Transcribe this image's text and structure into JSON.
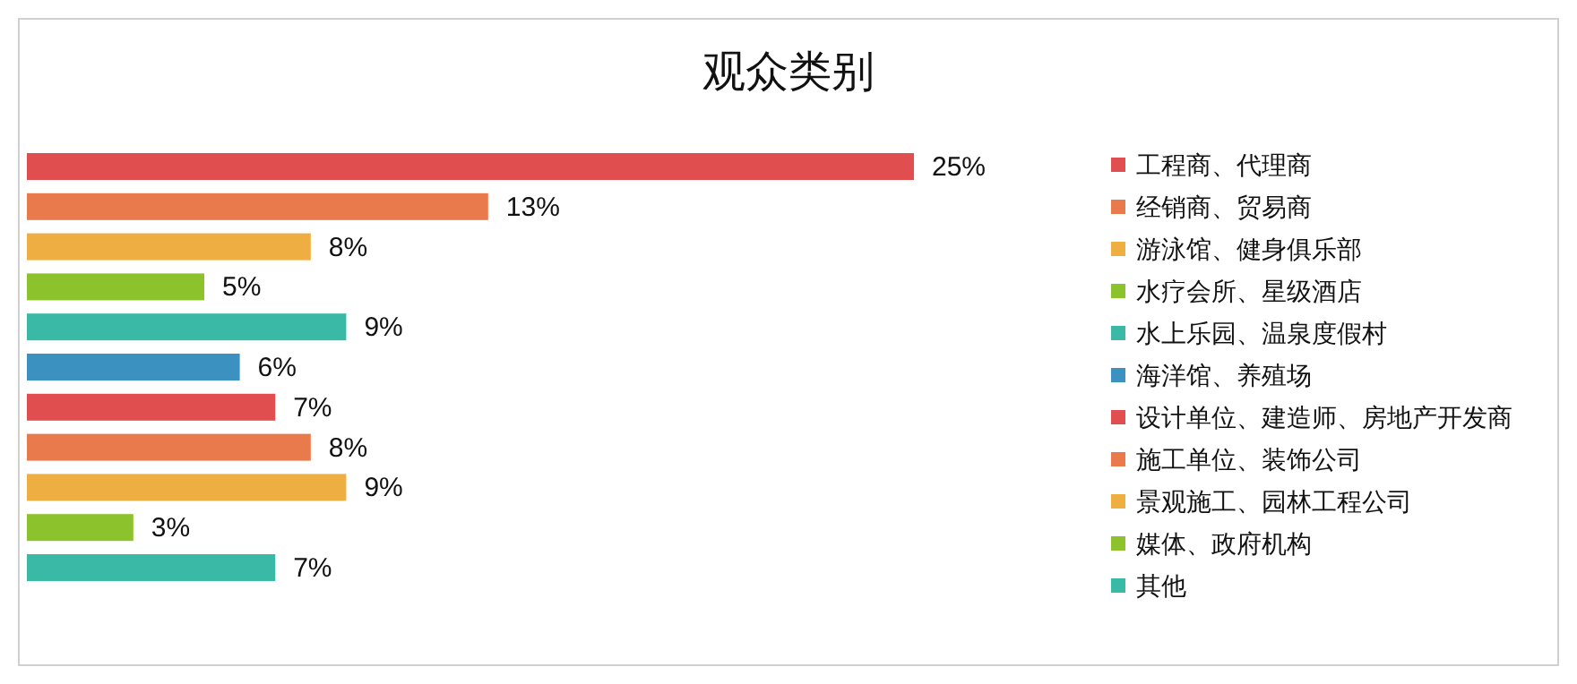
{
  "chart_data": {
    "type": "bar",
    "orientation": "horizontal",
    "title": "观众类别",
    "categories": [
      "工程商、代理商",
      "经销商、贸易商",
      "游泳馆、健身俱乐部",
      "水疗会所、星级酒店",
      "水上乐园、温泉度假村",
      "海洋馆、养殖场",
      "设计单位、建造师、房地产开发商",
      "施工单位、装饰公司",
      "景观施工、园林工程公司",
      "媒体、政府机构",
      "其他"
    ],
    "values": [
      25,
      13,
      8,
      5,
      9,
      6,
      7,
      8,
      9,
      3,
      7
    ],
    "value_labels": [
      "25%",
      "13%",
      "8%",
      "5%",
      "9%",
      "6%",
      "7%",
      "8%",
      "9%",
      "3%",
      "7%"
    ],
    "colors": [
      "#e04e50",
      "#e87a4c",
      "#eeae42",
      "#8cc22c",
      "#3ab9a6",
      "#3b91c0",
      "#e04e50",
      "#e87a4c",
      "#eeae42",
      "#8cc22c",
      "#3ab9a6"
    ]
  }
}
